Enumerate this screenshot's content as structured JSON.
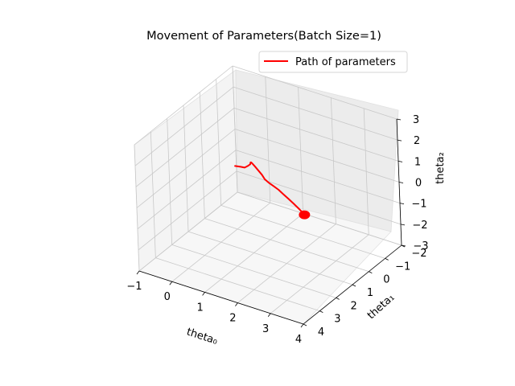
{
  "chart_data": {
    "type": "line",
    "projection": "3d",
    "title": "Movement of Parameters(Batch Size=1)",
    "xlabel": "theta₀",
    "ylabel": "theta₁",
    "zlabel": "theta₂",
    "xlim": [
      -1,
      4
    ],
    "ylim": [
      -2,
      4
    ],
    "zlim": [
      -3,
      3
    ],
    "x_ticks": [
      "−1",
      "0",
      "1",
      "2",
      "3",
      "4"
    ],
    "y_ticks": [
      "−2",
      "−1",
      "0",
      "1",
      "2",
      "3",
      "4"
    ],
    "z_ticks": [
      "−3",
      "−2",
      "−1",
      "0",
      "1",
      "2",
      "3"
    ],
    "grid": true,
    "legend": {
      "position": "top-right",
      "entries": [
        "Path of parameters"
      ]
    },
    "series": [
      {
        "name": "Path of parameters",
        "color": "#ff0000",
        "points": [
          [
            0.0,
            0.0,
            0.0
          ],
          [
            0.2,
            0.06,
            0.1
          ],
          [
            0.38,
            0.17,
            0.22
          ],
          [
            0.5,
            0.3,
            0.4
          ],
          [
            0.64,
            0.47,
            0.62
          ],
          [
            0.78,
            0.65,
            0.85
          ],
          [
            0.9,
            0.83,
            1.05
          ],
          [
            0.98,
            0.97,
            1.22
          ],
          [
            1.06,
            1.11,
            1.4
          ],
          [
            1.15,
            1.24,
            1.52
          ],
          [
            1.25,
            1.36,
            1.58
          ],
          [
            1.38,
            1.47,
            1.58
          ],
          [
            1.53,
            1.56,
            1.52
          ],
          [
            1.66,
            1.62,
            1.43
          ],
          [
            1.76,
            1.66,
            1.3
          ],
          [
            1.9,
            1.71,
            1.24
          ],
          [
            2.08,
            1.77,
            1.2
          ],
          [
            2.27,
            1.84,
            1.16
          ],
          [
            2.46,
            1.93,
            1.1
          ],
          [
            2.66,
            2.02,
            1.04
          ],
          [
            2.87,
            2.12,
            0.97
          ],
          [
            3.05,
            2.21,
            0.91
          ],
          [
            3.2,
            2.29,
            0.86
          ],
          [
            3.28,
            2.34,
            0.83
          ],
          [
            3.31,
            2.36,
            0.82
          ]
        ]
      }
    ]
  }
}
